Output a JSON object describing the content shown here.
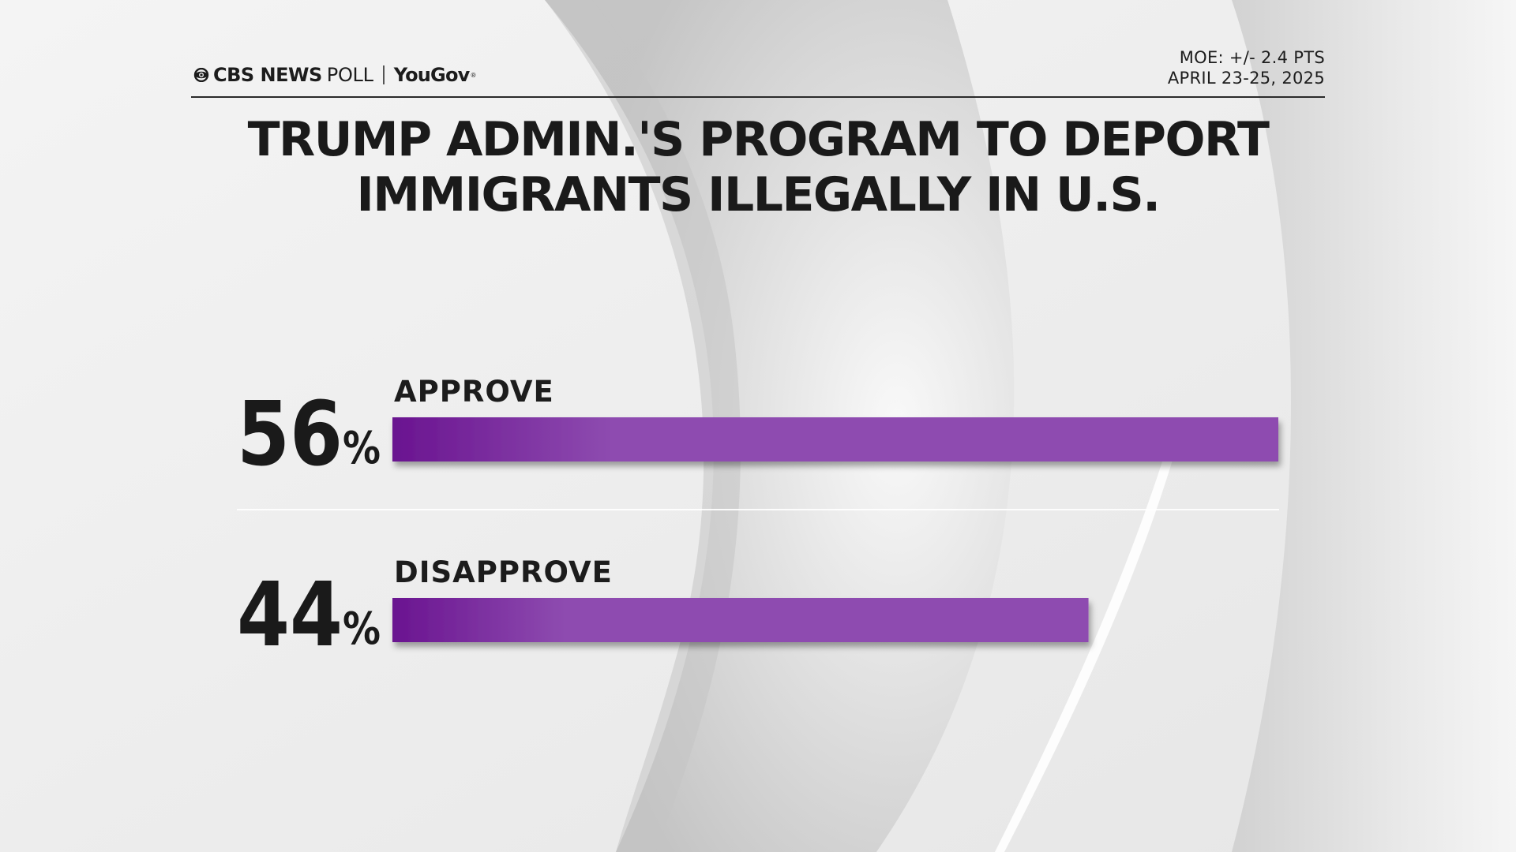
{
  "header": {
    "brand_cbs": "CBS NEWS",
    "brand_poll": "POLL",
    "brand_yougov": "YouGov",
    "moe": "MOE: +/- 2.4 PTS",
    "dates": "APRIL 23-25, 2025"
  },
  "colors": {
    "bar_start": "#6a1490",
    "bar_end": "#8e4cb0",
    "text": "#1a1a1a"
  },
  "chart_data": {
    "type": "bar",
    "orientation": "horizontal",
    "title": "TRUMP ADMIN.'S PROGRAM TO DEPORT\nIMMIGRANTS ILLEGALLY IN U.S.",
    "categories": [
      "APPROVE",
      "DISAPPROVE"
    ],
    "values": [
      56,
      44
    ],
    "value_labels": [
      "56",
      "44"
    ],
    "unit": "%",
    "xlim": [
      0,
      56
    ],
    "grid": false,
    "legend": "none"
  }
}
